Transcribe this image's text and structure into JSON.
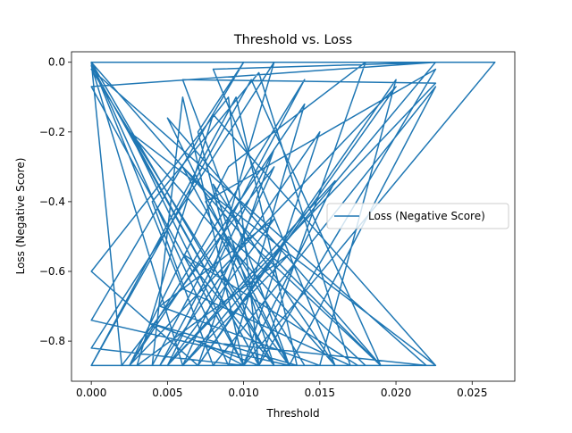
{
  "chart_data": {
    "type": "line",
    "title": "Threshold vs. Loss",
    "xlabel": "Threshold",
    "ylabel": "Loss (Negative Score)",
    "xlim": [
      -0.0013,
      0.0278
    ],
    "ylim": [
      -0.915,
      0.03
    ],
    "xticks": [
      0.0,
      0.005,
      0.01,
      0.015,
      0.02,
      0.025
    ],
    "xtick_labels": [
      "0.000",
      "0.005",
      "0.010",
      "0.015",
      "0.020",
      "0.025"
    ],
    "yticks": [
      0.0,
      -0.2,
      -0.4,
      -0.6,
      -0.8
    ],
    "ytick_labels": [
      "0.0",
      "−0.2",
      "−0.4",
      "−0.6",
      "−0.8"
    ],
    "grid": false,
    "legend_position": "center-right",
    "series": [
      {
        "name": "Loss (Negative Score)",
        "color": "#1f77b4",
        "x": [
          0.0,
          0.0226,
          0.0,
          0.01,
          0.0,
          0.012,
          0.008,
          0.0,
          0.0265,
          0.01,
          0.006,
          0.004,
          0.014,
          0.0025,
          0.009,
          0.018,
          0.011,
          0.007,
          0.01,
          0.0,
          0.013,
          0.006,
          0.0226,
          0.005,
          0.012,
          0.0045,
          0.015,
          0.02,
          0.007,
          0.0,
          0.009,
          0.011,
          0.0025,
          0.016,
          0.008,
          0.0226,
          0.006,
          0.012,
          0.002,
          0.0,
          0.01,
          0.019,
          0.005,
          0.013,
          0.0226,
          0.008,
          0.004,
          0.011,
          0.017,
          0.006,
          0.0,
          0.009,
          0.014,
          0.0025,
          0.02,
          0.007,
          0.012,
          0.005,
          0.016,
          0.01,
          0.0226,
          0.008,
          0.003,
          0.013,
          0.006,
          0.0,
          0.011,
          0.018,
          0.009,
          0.0045,
          0.015,
          0.01,
          0.007,
          0.022,
          0.0,
          0.012,
          0.0085,
          0.013,
          0.006,
          0.019,
          0.0105,
          0.0,
          0.014,
          0.0075,
          0.0226,
          0.011,
          0.004,
          0.0135,
          0.0095,
          0.0,
          0.016,
          0.008,
          0.012,
          0.006,
          0.0175,
          0.01,
          0.0025,
          0.0226
        ],
        "y": [
          0.0,
          0.0,
          -0.07,
          -0.87,
          -0.82,
          0.0,
          -0.6,
          0.0,
          0.0,
          -0.87,
          -0.1,
          -0.87,
          -0.05,
          -0.87,
          -0.3,
          0.0,
          -0.87,
          -0.2,
          0.0,
          -0.74,
          -0.87,
          -0.05,
          -0.06,
          -0.87,
          -0.45,
          -0.7,
          -0.87,
          -0.05,
          -0.87,
          -0.6,
          -0.1,
          -0.87,
          -0.2,
          -0.87,
          -0.02,
          0.0,
          -0.87,
          -0.3,
          -0.87,
          0.0,
          -0.5,
          -0.87,
          -0.16,
          -0.87,
          -0.07,
          -0.87,
          -0.4,
          -0.03,
          -0.87,
          -0.65,
          0.0,
          -0.87,
          -0.12,
          -0.87,
          -0.07,
          -0.87,
          -0.25,
          -0.87,
          -0.34,
          -0.87,
          -0.87,
          -0.15,
          -0.87,
          -0.55,
          -0.87,
          -0.01,
          -0.87,
          -0.87,
          -0.5,
          -0.87,
          -0.2,
          -0.87,
          -0.8,
          -0.87,
          -0.02,
          -0.87,
          -0.6,
          -0.87,
          -0.3,
          -0.87,
          -0.05,
          -0.87,
          -0.87,
          -0.4,
          -0.02,
          -0.87,
          -0.75,
          -0.87,
          -0.1,
          -0.87,
          -0.87,
          -0.35,
          -0.87,
          -0.55,
          -0.87,
          -0.87,
          -0.2,
          -0.87
        ]
      }
    ]
  }
}
